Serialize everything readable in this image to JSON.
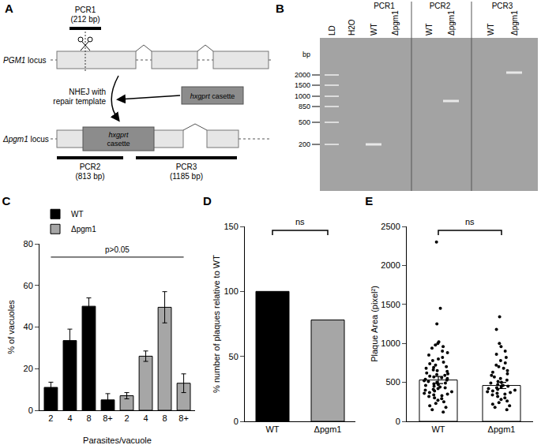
{
  "diagram": {
    "title": "A",
    "pcr1": {
      "label": "PCR1",
      "size": "(212 bp)"
    },
    "wt_locus": "PGM1 locus",
    "step": [
      "NHEJ with",
      "repair template"
    ],
    "cassette": "hxgprt casette",
    "ko_locus": "Δpgm1 locus",
    "pcr2": {
      "label": "PCR2",
      "size": "(813 bp)"
    },
    "pcr3": {
      "label": "PCR3",
      "size": "(1185 bp)"
    }
  },
  "gel": {
    "title": "B",
    "ladder_unit": "bp",
    "ladder": [
      2000,
      1500,
      1000,
      850,
      500,
      200
    ],
    "lanes": [
      {
        "label": "LD"
      },
      {
        "label": "H2O"
      }
    ],
    "groups": [
      {
        "label": "PCR1",
        "lanes": [
          {
            "label": "WT",
            "band": true
          },
          {
            "label": "Δpgm1",
            "band": false
          }
        ]
      },
      {
        "label": "PCR2",
        "lanes": [
          {
            "label": "WT",
            "band": false
          },
          {
            "label": "Δpgm1",
            "band": true
          }
        ]
      },
      {
        "label": "PCR3",
        "lanes": [
          {
            "label": "WT",
            "band": false
          },
          {
            "label": "Δpgm1",
            "band": true
          }
        ]
      }
    ]
  },
  "chart_data": [
    {
      "type": "bar",
      "title": "C",
      "categories": [
        "2",
        "4",
        "8",
        "8+",
        "2",
        "4",
        "8",
        "8+"
      ],
      "xlabel": "Parasites/vacuole",
      "ylabel": "% of vacuoles",
      "series": [
        {
          "name": "WT",
          "color": "#000000",
          "values": [
            11,
            33.5,
            50,
            5,
            null,
            null,
            null,
            null
          ],
          "errors": [
            2.5,
            5.5,
            4,
            3,
            null,
            null,
            null,
            null
          ]
        },
        {
          "name": "Δpgm1",
          "color": "#a6a6a6",
          "values": [
            null,
            null,
            null,
            null,
            7,
            26,
            49.5,
            13
          ],
          "errors": [
            null,
            null,
            null,
            null,
            1.5,
            2.5,
            7.5,
            4.5
          ]
        }
      ],
      "ylim": [
        0,
        80
      ],
      "yticks": [
        0,
        20,
        40,
        60,
        80
      ],
      "annotation": "p>0.05",
      "legend": "top left",
      "grid": false
    },
    {
      "type": "bar",
      "title": "D",
      "categories": [
        "WT",
        "Δpgm1"
      ],
      "values": [
        100,
        78
      ],
      "colors": [
        "#000000",
        "#a6a6a6"
      ],
      "ylabel": "% number of plaques relative to WT",
      "ylim": [
        0,
        150
      ],
      "yticks": [
        0,
        50,
        100,
        150
      ],
      "annotation": "ns",
      "grid": false
    },
    {
      "type": "bar",
      "title": "E",
      "categories": [
        "WT",
        "Δpgm1"
      ],
      "values": [
        530,
        460
      ],
      "errors": [
        45,
        40
      ],
      "points": [
        [
          2300,
          1450,
          1250,
          1020,
          1000,
          980,
          960,
          940,
          900,
          880,
          850,
          820,
          800,
          780,
          760,
          740,
          720,
          700,
          690,
          680,
          660,
          650,
          640,
          620,
          610,
          600,
          590,
          580,
          570,
          560,
          550,
          540,
          530,
          520,
          510,
          500,
          490,
          480,
          470,
          460,
          450,
          440,
          430,
          420,
          410,
          400,
          390,
          380,
          370,
          360,
          350,
          340,
          330,
          320,
          300,
          290,
          270,
          250,
          230,
          200,
          180,
          150,
          120
        ],
        [
          1340,
          1180,
          1000,
          960,
          900,
          860,
          820,
          780,
          750,
          720,
          700,
          680,
          650,
          630,
          610,
          590,
          570,
          550,
          530,
          510,
          500,
          490,
          470,
          460,
          450,
          440,
          430,
          420,
          410,
          400,
          390,
          380,
          370,
          360,
          350,
          340,
          320,
          300,
          280,
          260,
          240,
          220,
          200,
          180,
          150
        ]
      ],
      "color": "#ffffff",
      "marker": "circle",
      "ylabel": "Plaque Area (pixel²)",
      "ylim": [
        0,
        2500
      ],
      "yticks": [
        0,
        500,
        1000,
        1500,
        2000,
        2500
      ],
      "annotation": "ns",
      "grid": false
    }
  ]
}
